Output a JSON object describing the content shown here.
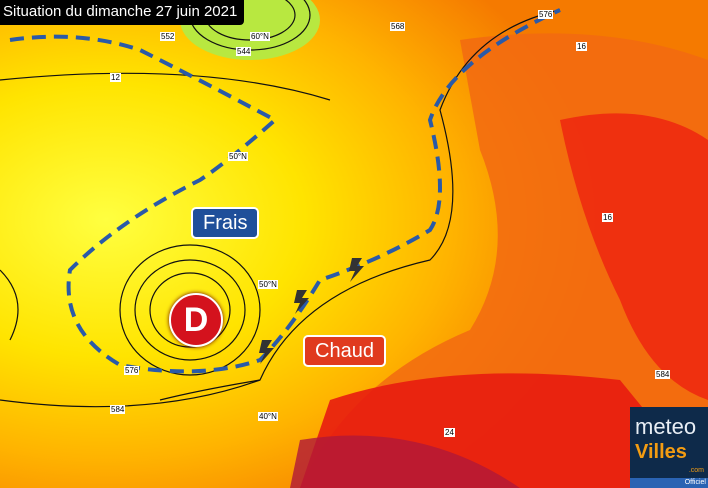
{
  "title": "Situation du dimanche 27 juin 2021",
  "labels": {
    "cool": "Frais",
    "hot": "Chaud",
    "low_pressure": "D"
  },
  "contour_labels": [
    "552",
    "544",
    "576",
    "584",
    "568",
    "576",
    "12",
    "16",
    "16",
    "584",
    "24",
    "60°N",
    "50°N",
    "50°N",
    "40°N"
  ],
  "logo": {
    "line1": "meteo",
    "line2": "Villes",
    "suffix": ".com",
    "tag": "Officiel"
  },
  "colors": {
    "cool_label": "#1f4f9a",
    "hot_label": "#e03a1e",
    "low": "#d4121d",
    "front": "#2a5aa8"
  }
}
